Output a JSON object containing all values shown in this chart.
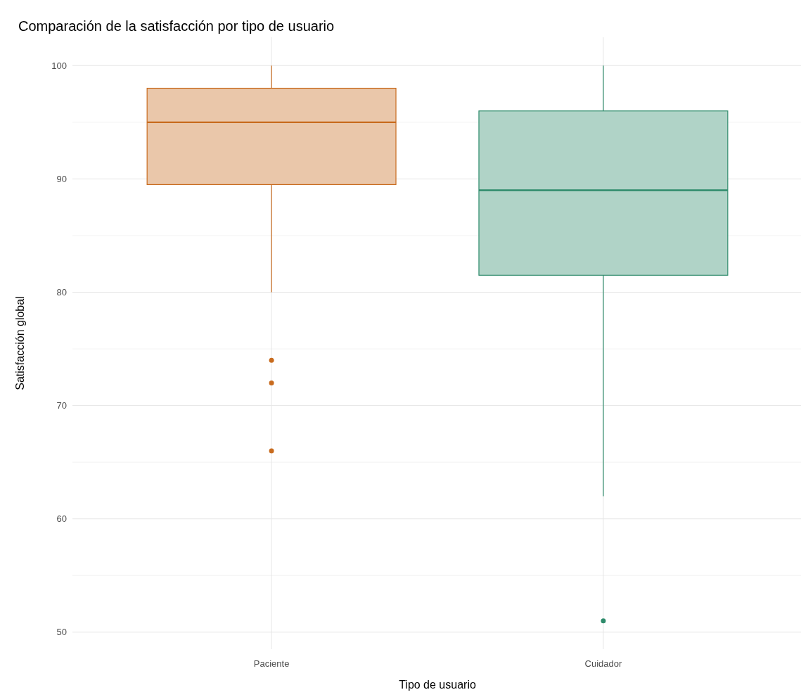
{
  "chart_data": {
    "type": "box",
    "title": "Comparación de la satisfacción por tipo de usuario",
    "xlabel": "Tipo de usuario",
    "ylabel": "Satisfacción global",
    "categories": [
      "Paciente",
      "Cuidador"
    ],
    "boxes": [
      {
        "low": 80,
        "q1": 89.5,
        "median": 95,
        "q3": 98,
        "high": 100,
        "outliers": [
          74,
          72,
          66
        ]
      },
      {
        "low": 62,
        "q1": 81.5,
        "median": 89,
        "q3": 96,
        "high": 100,
        "outliers": [
          51
        ]
      }
    ],
    "colors": [
      "#c86b1e",
      "#2e8b6b"
    ],
    "ylim": [
      48.5,
      102.5
    ],
    "yticks": [
      50,
      60,
      70,
      80,
      90,
      100
    ],
    "grid": true
  }
}
